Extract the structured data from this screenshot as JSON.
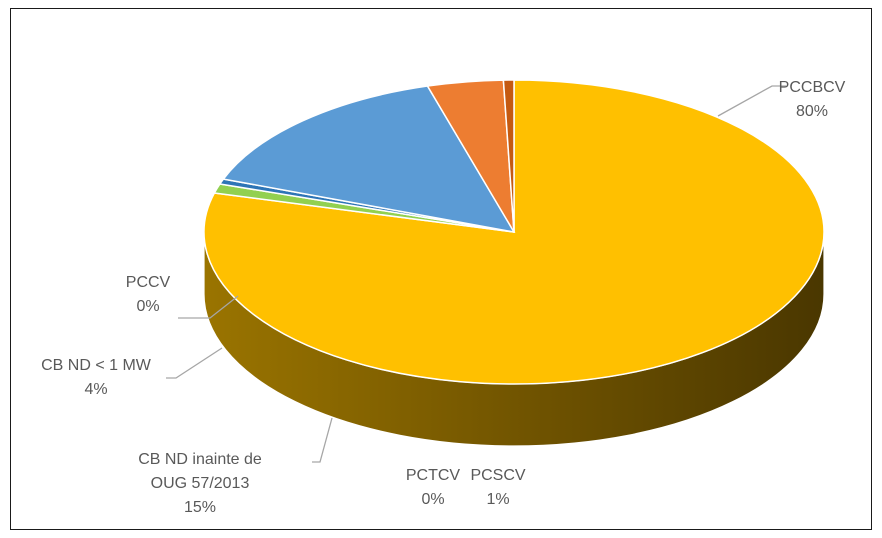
{
  "chart_data": {
    "type": "pie",
    "style": "3d",
    "title": "",
    "categories": [
      "PCCBCV",
      "PCSCV",
      "PCTCV",
      "CB ND inainte de OUG 57/2013",
      "CB ND < 1 MW",
      "PCCV"
    ],
    "values": [
      80,
      1,
      0,
      15,
      4,
      0
    ],
    "label_lines": [
      [
        "PCCBCV",
        "80%"
      ],
      [
        "PCSCV",
        "1%"
      ],
      [
        "PCTCV",
        "0%"
      ],
      [
        "CB ND inainte de",
        "OUG 57/2013",
        "15%"
      ],
      [
        "CB ND < 1 MW",
        "4%"
      ],
      [
        "PCCV",
        "0%"
      ]
    ],
    "colors": {
      "PCCBCV": "#FFC000",
      "PCSCV": "#92D050",
      "PCTCV": "#2E75B6",
      "CB ND inainte de OUG 57/2013": "#5B9BD5",
      "CB ND < 1 MW": "#ED7D31",
      "PCCV": "#C55A11"
    },
    "legend": "none",
    "data_labels": "outside with leader lines"
  }
}
